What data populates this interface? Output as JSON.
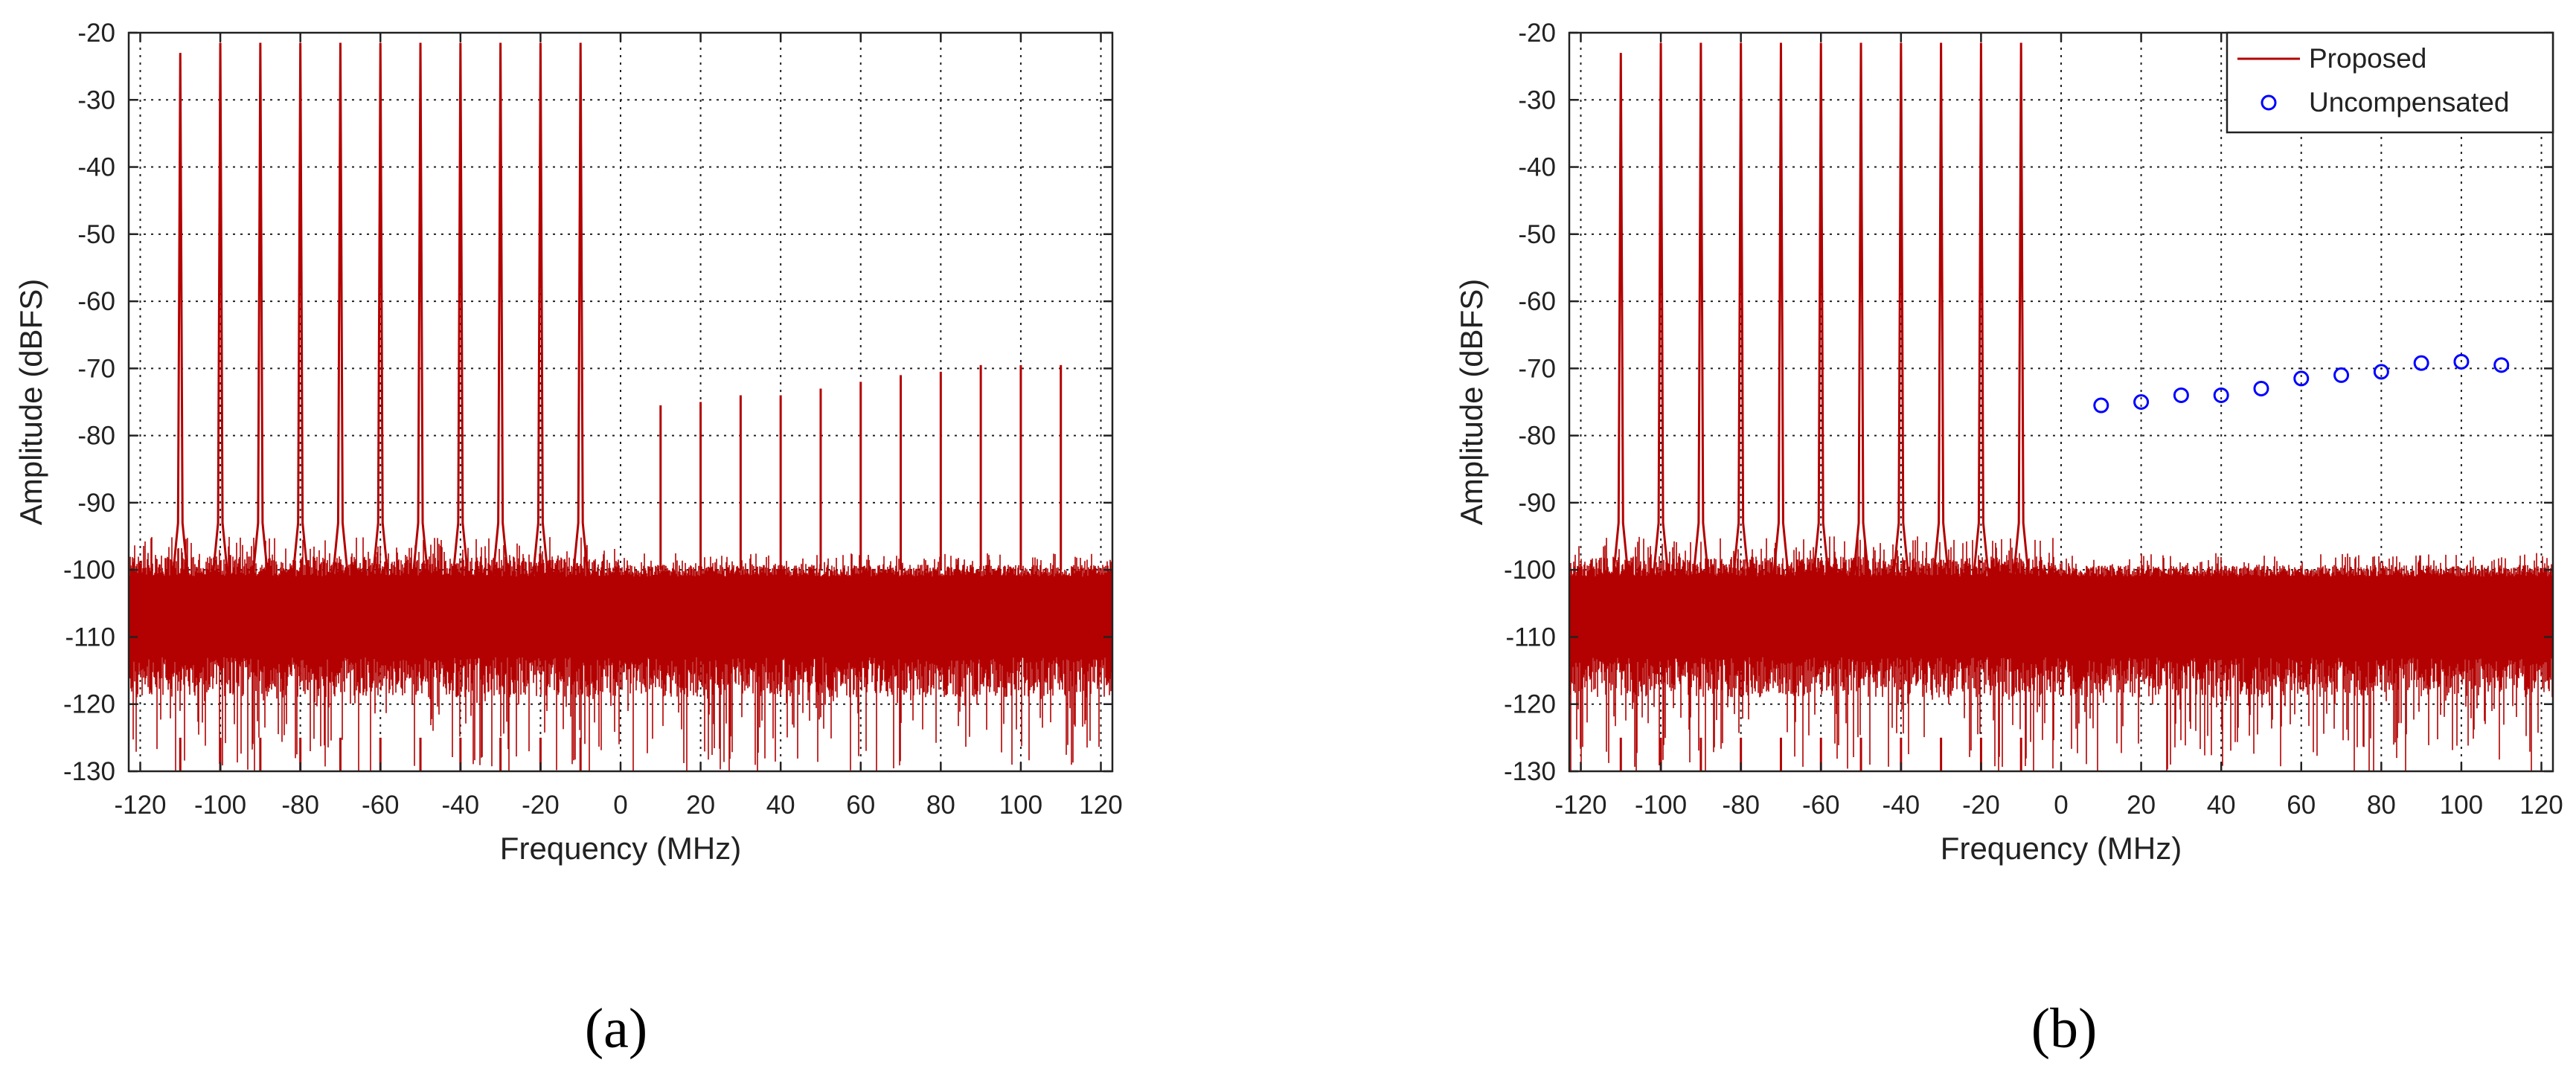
{
  "chart_data": [
    {
      "type": "line",
      "panel_label": "a",
      "xlabel": "Frequency (MHz)",
      "ylabel": "Amplitude (dBFS)",
      "xlim": [
        -122.88,
        122.88
      ],
      "ylim": [
        -130,
        -20
      ],
      "xticks": [
        -120,
        -100,
        -80,
        -60,
        -40,
        -20,
        0,
        20,
        40,
        60,
        80,
        100,
        120
      ],
      "yticks": [
        -20,
        -30,
        -40,
        -50,
        -60,
        -70,
        -80,
        -90,
        -100,
        -110,
        -120,
        -130
      ],
      "grid": true,
      "legend": null,
      "noise_floor": {
        "mean": -109,
        "upper_envelope": -100,
        "lower_extent": -130
      },
      "series": [
        {
          "color": "#b30000",
          "tones": {
            "x": [
              -110,
              -100,
              -90,
              -80,
              -70,
              -60,
              -50,
              -40,
              -30,
              -20,
              -10
            ],
            "y": [
              -23,
              -21.5,
              -21.5,
              -21.5,
              -21.5,
              -21.5,
              -21.5,
              -21.5,
              -21.5,
              -21.5,
              -21.5
            ]
          },
          "image_spurs": {
            "x": [
              10,
              20,
              30,
              40,
              50,
              60,
              70,
              80,
              90,
              100,
              110
            ],
            "y": [
              -75.5,
              -75,
              -74,
              -74,
              -73,
              -72,
              -71,
              -70.5,
              -69.5,
              -69.5,
              -69.5
            ]
          }
        }
      ]
    },
    {
      "type": "line",
      "panel_label": "b",
      "xlabel": "Frequency (MHz)",
      "ylabel": "Amplitude (dBFS)",
      "xlim": [
        -122.88,
        122.88
      ],
      "ylim": [
        -130,
        -20
      ],
      "xticks": [
        -120,
        -100,
        -80,
        -60,
        -40,
        -20,
        0,
        20,
        40,
        60,
        80,
        100,
        120
      ],
      "yticks": [
        -20,
        -30,
        -40,
        -50,
        -60,
        -70,
        -80,
        -90,
        -100,
        -110,
        -120,
        -130
      ],
      "grid": true,
      "legend": "top-right",
      "noise_floor": {
        "mean": -109,
        "upper_envelope": -100,
        "lower_extent": -130
      },
      "series": [
        {
          "name": "Proposed",
          "color": "#b30000",
          "tones": {
            "x": [
              -110,
              -100,
              -90,
              -80,
              -70,
              -60,
              -50,
              -40,
              -30,
              -20,
              -10
            ],
            "y": [
              -23,
              -21.5,
              -21.5,
              -21.5,
              -21.5,
              -21.5,
              -21.5,
              -21.5,
              -21.5,
              -21.5,
              -21.5
            ]
          }
        },
        {
          "name": "Uncompensated",
          "color": "#0000ff",
          "marker": "circle",
          "x": [
            10,
            20,
            30,
            40,
            50,
            60,
            70,
            80,
            90,
            100,
            110
          ],
          "y": [
            -75.5,
            -75,
            -74,
            -74,
            -73,
            -71.5,
            -71,
            -70.5,
            -69.2,
            -69,
            -69.5
          ]
        }
      ]
    }
  ],
  "captions": {
    "a": "(a)",
    "b": "(b)"
  }
}
